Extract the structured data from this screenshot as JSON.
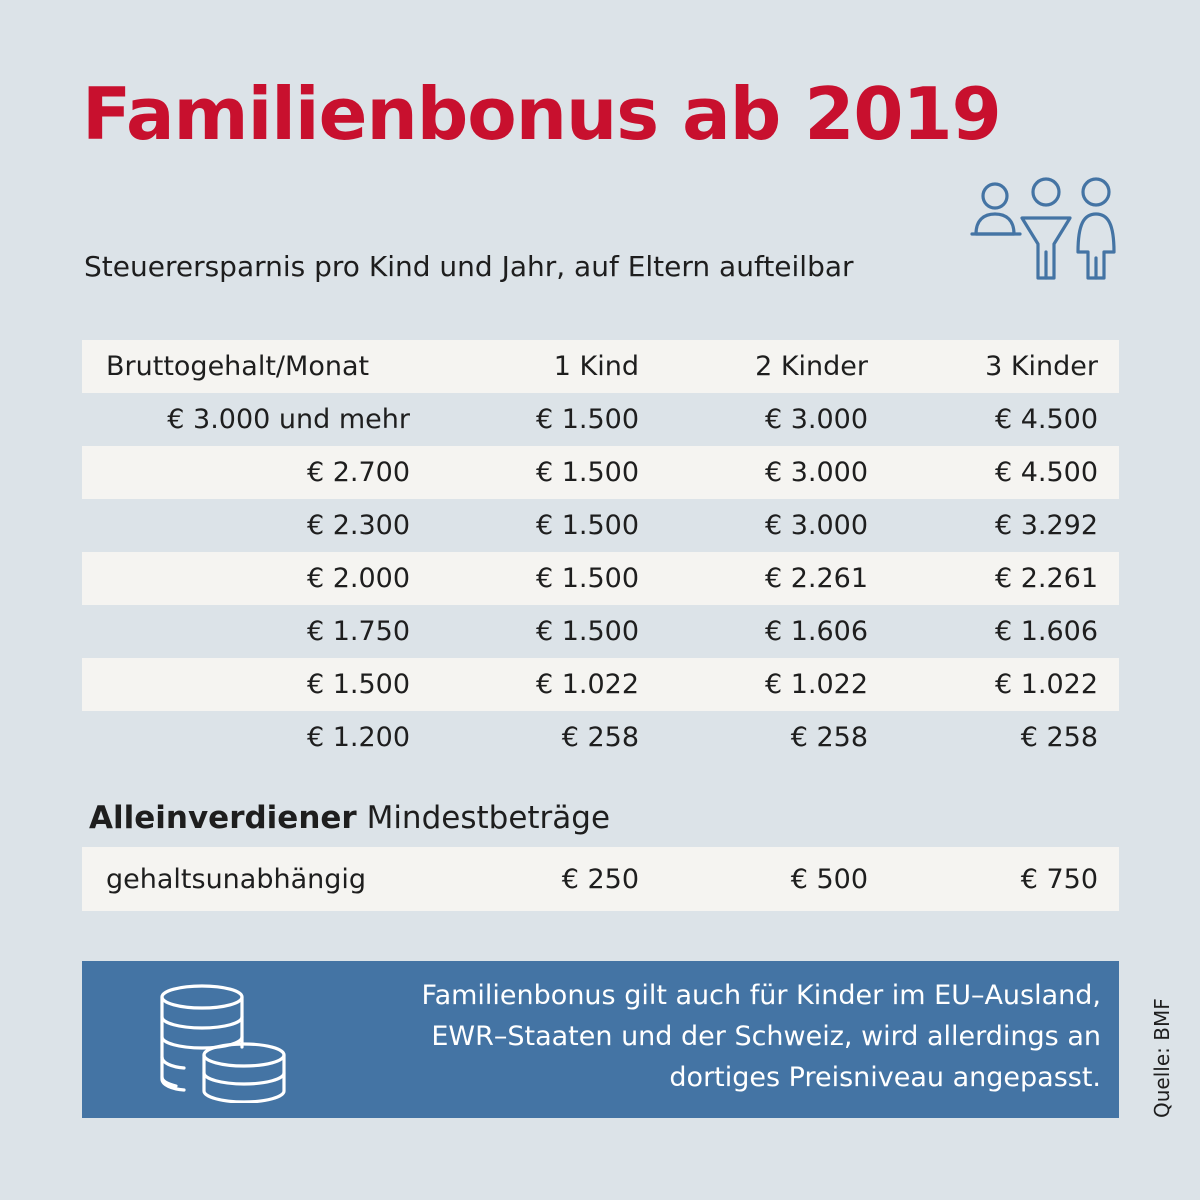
{
  "title": "Familienbonus ab 2019",
  "subtitle": "Steuerersparnis pro Kind und Jahr, auf Eltern aufteilbar",
  "colors": {
    "title": "#c8102e",
    "box": "#4474a4",
    "icon": "#4474a4",
    "background": "#dce3e8",
    "row_shade": "#f5f4f1"
  },
  "icons": {
    "header": "family-icon",
    "box": "coins-icon"
  },
  "chart_data": {
    "type": "table",
    "columns": [
      "Bruttogehalt/Monat",
      "1 Kind",
      "2 Kinder",
      "3 Kinder"
    ],
    "rows": [
      [
        "€ 3.000 und mehr",
        "€ 1.500",
        "€ 3.000",
        "€ 4.500"
      ],
      [
        "€ 2.700",
        "€ 1.500",
        "€ 3.000",
        "€ 4.500"
      ],
      [
        "€ 2.300",
        "€ 1.500",
        "€ 3.000",
        "€ 3.292"
      ],
      [
        "€ 2.000",
        "€ 1.500",
        "€ 2.261",
        "€ 2.261"
      ],
      [
        "€ 1.750",
        "€ 1.500",
        "€ 1.606",
        "€ 1.606"
      ],
      [
        "€ 1.500",
        "€ 1.022",
        "€ 1.022",
        "€ 1.022"
      ],
      [
        "€ 1.200",
        "€ 258",
        "€ 258",
        "€ 258"
      ]
    ]
  },
  "alleinverdiener": {
    "title_bold": "Alleinverdiener",
    "title_rest": " Mindestbeträge",
    "row": [
      "gehaltsunabhängig",
      "€ 250",
      "€ 500",
      "€ 750"
    ]
  },
  "info": {
    "lines": [
      "Familienbonus gilt auch für Kinder im EU–Ausland,",
      "EWR–Staaten und der Schweiz, wird allerdings an",
      "dortiges Preisniveau angepasst."
    ]
  },
  "source": "Quelle: BMF"
}
